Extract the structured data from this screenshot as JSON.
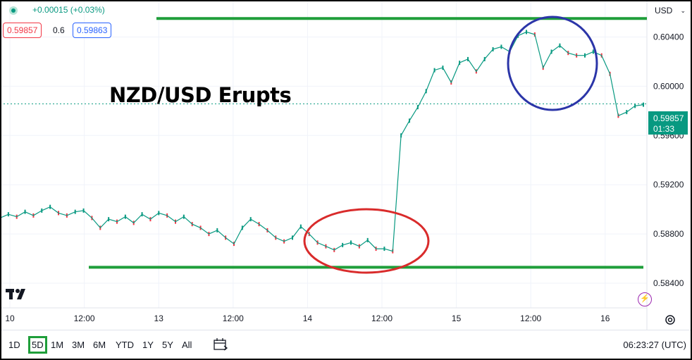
{
  "header": {
    "change": "+0.00015 (+0.03%)",
    "bid": "0.59857",
    "spread": "0.6",
    "ask": "0.59863",
    "currency": "USD"
  },
  "annotation_title": "NZD/USD Erupts",
  "current_price": {
    "value": "0.59857",
    "countdown": "01:33"
  },
  "colors": {
    "up": "#089981",
    "down": "#f23645",
    "level_lines": "#1f9e3a",
    "circle_top": "#2b35a8",
    "circle_bottom": "#d92b2b"
  },
  "timeframes": [
    "1D",
    "5D",
    "1M",
    "3M",
    "6M",
    "YTD",
    "1Y",
    "5Y",
    "All"
  ],
  "active_timeframe": "5D",
  "clock": "06:23:27 (UTC)",
  "chart_data": {
    "type": "line",
    "ylim": [
      0.582,
      0.607
    ],
    "y_ticks": [
      "0.60400",
      "0.60000",
      "0.59600",
      "0.59200",
      "0.58800",
      "0.58400"
    ],
    "x_ticks": [
      "10",
      "12:00",
      "13",
      "12:00",
      "14",
      "12:00",
      "15",
      "12:00",
      "16"
    ],
    "series": [
      {
        "values": [
          0.5893,
          0.5896,
          0.5894,
          0.5898,
          0.5895,
          0.5899,
          0.5902,
          0.5897,
          0.5895,
          0.5898,
          0.5899,
          0.5893,
          0.5885,
          0.5892,
          0.589,
          0.5894,
          0.5889,
          0.5896,
          0.5892,
          0.5897,
          0.5895,
          0.589,
          0.5894,
          0.5888,
          0.5885,
          0.588,
          0.5883,
          0.5877,
          0.5872,
          0.5885,
          0.5892,
          0.5888,
          0.5883,
          0.5877,
          0.5874,
          0.5877,
          0.5886,
          0.588,
          0.5873,
          0.587,
          0.5867,
          0.5871,
          0.5873,
          0.587,
          0.5875,
          0.5868,
          0.5868,
          0.5866,
          0.596,
          0.5972,
          0.5983,
          0.5996,
          0.6013,
          0.6015,
          0.6003,
          0.6019,
          0.6022,
          0.6012,
          0.6022,
          0.603,
          0.6032,
          0.6028,
          0.6041,
          0.6044,
          0.6042,
          0.6015,
          0.6028,
          0.6033,
          0.6027,
          0.6025,
          0.6025,
          0.6028,
          0.6025,
          0.601,
          0.5976,
          0.5979,
          0.5984,
          0.5985
        ]
      }
    ],
    "levels": [
      0.6055,
      0.5853
    ],
    "last_value": 0.59857
  }
}
